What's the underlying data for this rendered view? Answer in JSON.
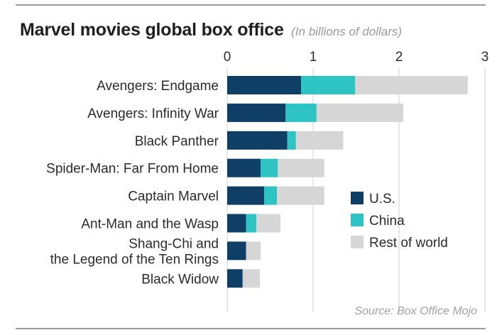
{
  "header": {
    "title": "Marvel movies global box office",
    "subtitle": "(In billions of dollars)"
  },
  "source": "Source: Box Office Mojo",
  "colors": {
    "us": "#0f3e66",
    "china": "#2ec4c4",
    "rest": "#d6d6d6",
    "grid": "#cfcfcf"
  },
  "chart_data": {
    "type": "bar",
    "orientation": "horizontal",
    "stacked": true,
    "title": "Marvel movies global box office",
    "subtitle": "(In billions of dollars)",
    "categories": [
      [
        "Avengers: Endgame"
      ],
      [
        "Avengers: Infinity War"
      ],
      [
        "Black Panther"
      ],
      [
        "Spider-Man: Far From Home"
      ],
      [
        "Captain Marvel"
      ],
      [
        "Ant-Man and the Wasp"
      ],
      [
        "Shang-Chi and",
        "the Legend of the Ten Rings"
      ],
      [
        "Black Widow"
      ]
    ],
    "series": [
      {
        "name": "U.S.",
        "color": "#0f3e66",
        "values": [
          0.86,
          0.68,
          0.7,
          0.39,
          0.43,
          0.22,
          0.22,
          0.18
        ]
      },
      {
        "name": "China",
        "color": "#2ec4c4",
        "values": [
          0.63,
          0.36,
          0.1,
          0.2,
          0.15,
          0.12,
          0.0,
          0.0
        ]
      },
      {
        "name": "Rest of world",
        "color": "#d6d6d6",
        "values": [
          1.31,
          1.01,
          0.55,
          0.54,
          0.55,
          0.28,
          0.17,
          0.2
        ]
      }
    ],
    "xticks": [
      0,
      1,
      2,
      3
    ],
    "xlim": [
      0,
      3
    ],
    "grid": true,
    "legend_position": "lower-right"
  }
}
